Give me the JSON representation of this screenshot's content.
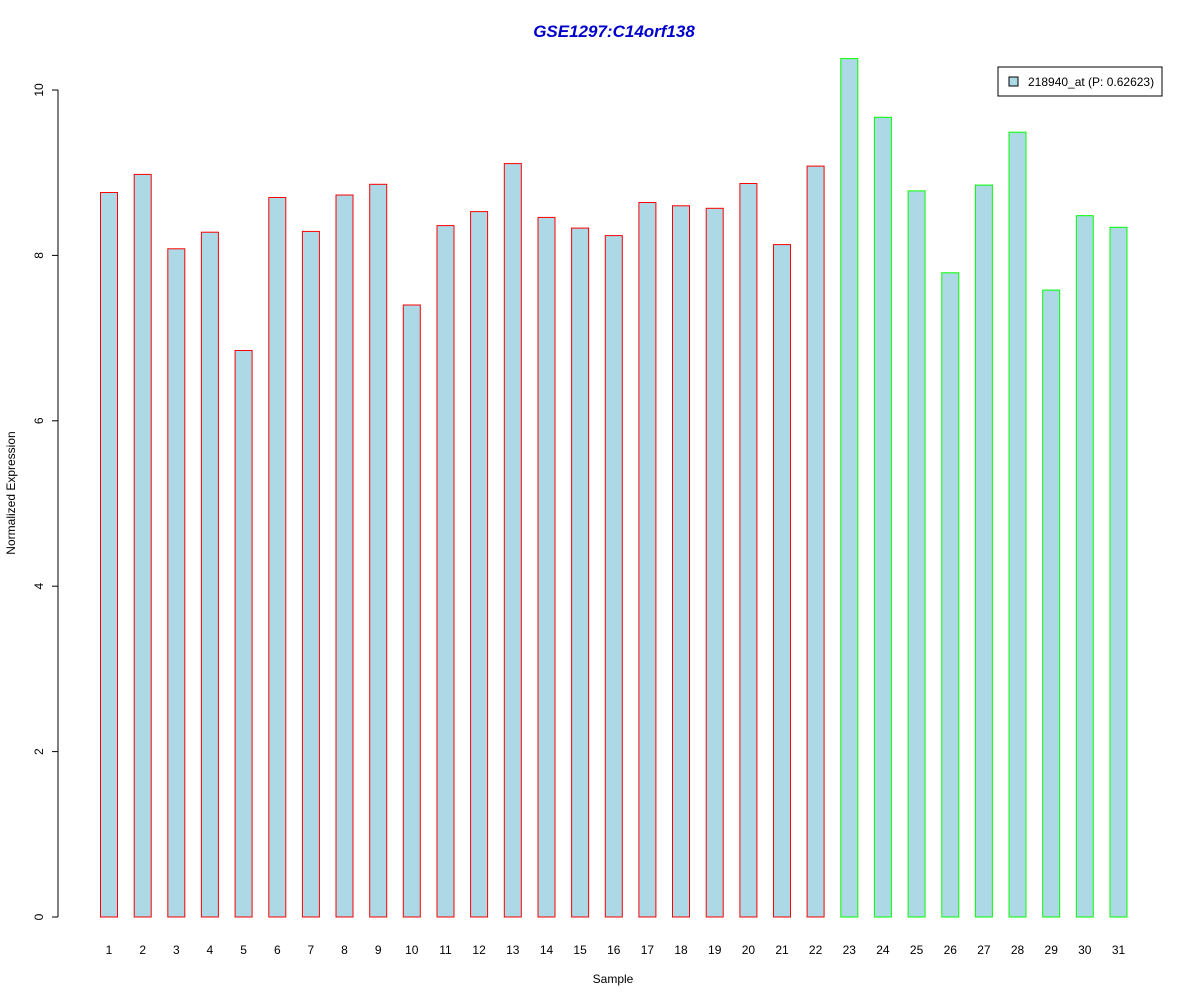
{
  "chart_data": {
    "type": "bar",
    "title": "GSE1297:C14orf138",
    "xlabel": "Sample",
    "ylabel": "Normalized Expression",
    "ylim": [
      0,
      10.4
    ],
    "yticks": [
      0,
      2,
      4,
      6,
      8,
      10
    ],
    "categories": [
      "1",
      "2",
      "3",
      "4",
      "5",
      "6",
      "7",
      "8",
      "9",
      "10",
      "11",
      "12",
      "13",
      "14",
      "15",
      "16",
      "17",
      "18",
      "19",
      "20",
      "21",
      "22",
      "23",
      "24",
      "25",
      "26",
      "27",
      "28",
      "29",
      "30",
      "31"
    ],
    "values": [
      8.76,
      8.98,
      8.08,
      8.28,
      6.85,
      8.7,
      8.29,
      8.73,
      8.86,
      7.4,
      8.36,
      8.53,
      9.11,
      8.46,
      8.33,
      8.24,
      8.64,
      8.6,
      8.57,
      8.87,
      8.13,
      9.08,
      10.38,
      9.67,
      8.78,
      7.79,
      8.85,
      9.49,
      7.58,
      8.48,
      8.34
    ],
    "bar_fill": "#add8e6",
    "groups": [
      {
        "color": "#ff0000",
        "count": 22
      },
      {
        "color": "#00ff00",
        "count": 9
      }
    ],
    "legend": {
      "label": "218940_at (P: 0.62623)",
      "position": "top-right"
    },
    "grid": false
  },
  "colors": {
    "title": "#0000cd",
    "axis": "#000000"
  }
}
